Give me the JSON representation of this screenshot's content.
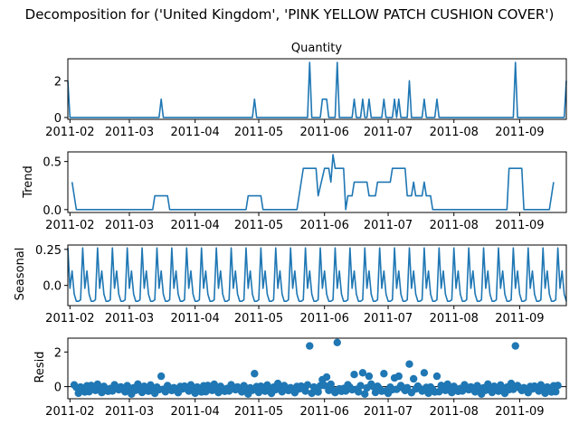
{
  "figure": {
    "title": "Decomposition for ('United Kingdom', 'PINK YELLOW PATCH CUSHION COVER')"
  },
  "chart_data": [
    {
      "type": "line",
      "title": "Quantity",
      "ylabel": "",
      "ylim": [
        -0.1,
        3.2
      ],
      "yticks": [
        0,
        2
      ],
      "xlim": [
        "2011-01-31",
        "2011-09-23"
      ],
      "xticks": [
        "2011-02",
        "2011-03",
        "2011-04",
        "2011-05",
        "2011-06",
        "2011-07",
        "2011-08",
        "2011-09"
      ],
      "grid": false,
      "series": [
        {
          "points": [
            [
              "2011-01-31",
              2
            ],
            [
              "2011-02-01",
              0
            ],
            [
              "2011-03-15",
              0
            ],
            [
              "2011-03-16",
              1
            ],
            [
              "2011-03-17",
              0
            ],
            [
              "2011-04-28",
              0
            ],
            [
              "2011-04-29",
              1
            ],
            [
              "2011-04-30",
              0
            ],
            [
              "2011-05-24",
              0
            ],
            [
              "2011-05-25",
              3
            ],
            [
              "2011-05-26",
              0
            ],
            [
              "2011-05-30",
              0
            ],
            [
              "2011-05-31",
              1
            ],
            [
              "2011-06-02",
              1
            ],
            [
              "2011-06-03",
              0
            ],
            [
              "2011-06-06",
              0
            ],
            [
              "2011-06-07",
              3
            ],
            [
              "2011-06-08",
              0
            ],
            [
              "2011-06-14",
              0
            ],
            [
              "2011-06-15",
              1
            ],
            [
              "2011-06-16",
              0
            ],
            [
              "2011-06-18",
              0
            ],
            [
              "2011-06-19",
              1
            ],
            [
              "2011-06-20",
              0
            ],
            [
              "2011-06-21",
              0
            ],
            [
              "2011-06-22",
              1
            ],
            [
              "2011-06-23",
              0
            ],
            [
              "2011-06-28",
              0
            ],
            [
              "2011-06-29",
              1
            ],
            [
              "2011-06-30",
              0
            ],
            [
              "2011-07-03",
              0
            ],
            [
              "2011-07-04",
              1
            ],
            [
              "2011-07-05",
              0
            ],
            [
              "2011-07-06",
              1
            ],
            [
              "2011-07-07",
              0
            ],
            [
              "2011-07-10",
              0
            ],
            [
              "2011-07-11",
              2
            ],
            [
              "2011-07-12",
              0
            ],
            [
              "2011-07-17",
              0
            ],
            [
              "2011-07-18",
              1
            ],
            [
              "2011-07-19",
              0
            ],
            [
              "2011-07-23",
              0
            ],
            [
              "2011-07-24",
              1
            ],
            [
              "2011-07-25",
              0
            ],
            [
              "2011-08-29",
              0
            ],
            [
              "2011-08-30",
              3
            ],
            [
              "2011-08-31",
              0
            ],
            [
              "2011-09-22",
              0
            ],
            [
              "2011-09-23",
              2
            ]
          ]
        }
      ],
      "markers": []
    },
    {
      "type": "line",
      "title": "",
      "ylabel": "Trend",
      "ylim": [
        -0.03,
        0.6
      ],
      "yticks": [
        0.0,
        0.5
      ],
      "xlim": [
        "2011-01-31",
        "2011-09-23"
      ],
      "xticks": [
        "2011-02",
        "2011-03",
        "2011-04",
        "2011-05",
        "2011-06",
        "2011-07",
        "2011-08",
        "2011-09"
      ],
      "grid": false,
      "series": [
        {
          "points": [
            [
              "2011-02-02",
              0.286
            ],
            [
              "2011-02-04",
              0.0
            ],
            [
              "2011-03-12",
              0.0
            ],
            [
              "2011-03-13",
              0.143
            ],
            [
              "2011-03-19",
              0.143
            ],
            [
              "2011-03-20",
              0.0
            ],
            [
              "2011-04-25",
              0.0
            ],
            [
              "2011-04-26",
              0.143
            ],
            [
              "2011-05-02",
              0.143
            ],
            [
              "2011-05-03",
              0.0
            ],
            [
              "2011-05-19",
              0.0
            ],
            [
              "2011-05-22",
              0.429
            ],
            [
              "2011-05-28",
              0.429
            ],
            [
              "2011-05-29",
              0.143
            ],
            [
              "2011-06-01",
              0.429
            ],
            [
              "2011-06-03",
              0.429
            ],
            [
              "2011-06-04",
              0.286
            ],
            [
              "2011-06-05",
              0.571
            ],
            [
              "2011-06-06",
              0.429
            ],
            [
              "2011-06-10",
              0.429
            ],
            [
              "2011-06-11",
              0.0
            ],
            [
              "2011-06-12",
              0.143
            ],
            [
              "2011-06-14",
              0.143
            ],
            [
              "2011-06-15",
              0.286
            ],
            [
              "2011-06-21",
              0.286
            ],
            [
              "2011-06-22",
              0.143
            ],
            [
              "2011-06-25",
              0.143
            ],
            [
              "2011-06-26",
              0.286
            ],
            [
              "2011-07-02",
              0.286
            ],
            [
              "2011-07-03",
              0.429
            ],
            [
              "2011-07-09",
              0.429
            ],
            [
              "2011-07-10",
              0.143
            ],
            [
              "2011-07-12",
              0.143
            ],
            [
              "2011-07-13",
              0.286
            ],
            [
              "2011-07-14",
              0.143
            ],
            [
              "2011-07-17",
              0.143
            ],
            [
              "2011-07-18",
              0.286
            ],
            [
              "2011-07-19",
              0.143
            ],
            [
              "2011-07-21",
              0.143
            ],
            [
              "2011-07-22",
              0.0
            ],
            [
              "2011-08-26",
              0.0
            ],
            [
              "2011-08-27",
              0.429
            ],
            [
              "2011-09-02",
              0.429
            ],
            [
              "2011-09-03",
              0.0
            ],
            [
              "2011-09-15",
              0.0
            ],
            [
              "2011-09-17",
              0.286
            ]
          ]
        }
      ],
      "markers": []
    },
    {
      "type": "line",
      "title": "",
      "ylabel": "Seasonal",
      "ylim": [
        -0.14,
        0.28
      ],
      "yticks": [
        0.0,
        0.25
      ],
      "xlim": [
        "2011-01-31",
        "2011-09-23"
      ],
      "xticks": [
        "2011-02",
        "2011-03",
        "2011-04",
        "2011-05",
        "2011-06",
        "2011-07",
        "2011-08",
        "2011-09"
      ],
      "grid": false,
      "weekly_pattern": [
        0.26,
        -0.02,
        0.1,
        -0.06,
        -0.11,
        -0.11,
        -0.1
      ],
      "series": [],
      "markers": []
    },
    {
      "type": "scatter",
      "title": "",
      "ylabel": "Resid",
      "ylim": [
        -0.7,
        2.8
      ],
      "yticks": [
        0,
        2
      ],
      "xlim": [
        "2011-01-31",
        "2011-09-23"
      ],
      "xticks": [
        "2011-02",
        "2011-03",
        "2011-04",
        "2011-05",
        "2011-06",
        "2011-07",
        "2011-08",
        "2011-09"
      ],
      "grid": false,
      "zero_line": true,
      "series": [],
      "outliers": [
        [
          "2011-03-16",
          0.6
        ],
        [
          "2011-04-29",
          0.75
        ],
        [
          "2011-05-25",
          2.35
        ],
        [
          "2011-05-31",
          0.4
        ],
        [
          "2011-06-02",
          0.55
        ],
        [
          "2011-06-07",
          2.55
        ],
        [
          "2011-06-15",
          0.7
        ],
        [
          "2011-06-19",
          0.8
        ],
        [
          "2011-06-22",
          0.6
        ],
        [
          "2011-06-29",
          0.75
        ],
        [
          "2011-07-04",
          0.5
        ],
        [
          "2011-07-06",
          0.6
        ],
        [
          "2011-07-11",
          1.3
        ],
        [
          "2011-07-13",
          0.45
        ],
        [
          "2011-07-18",
          0.8
        ],
        [
          "2011-07-24",
          0.6
        ],
        [
          "2011-08-30",
          2.35
        ]
      ]
    }
  ]
}
